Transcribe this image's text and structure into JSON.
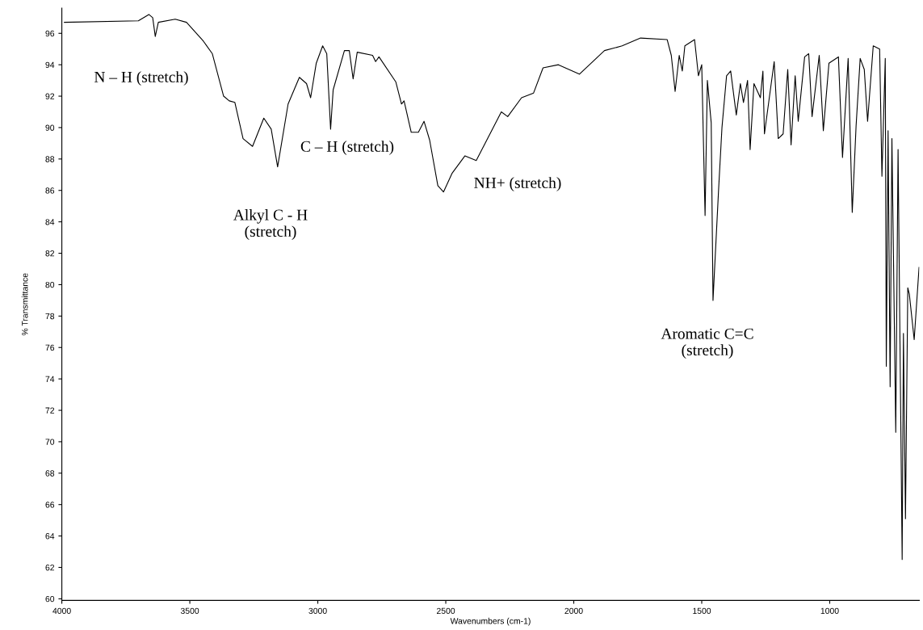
{
  "chart_data": {
    "type": "line",
    "xlabel": "Wavenumbers (cm-1)",
    "ylabel": "% Transmittance",
    "xlim": [
      4000,
      650
    ],
    "xticks": [
      4000,
      3500,
      3000,
      2500,
      2000,
      1500,
      1000
    ],
    "ylim": [
      59.9,
      97.6
    ],
    "yticks": [
      60,
      62,
      64,
      66,
      68,
      70,
      72,
      74,
      76,
      78,
      80,
      82,
      84,
      86,
      88,
      90,
      92,
      94,
      96
    ],
    "grid": false,
    "marker": "none",
    "line_style": "solid",
    "series": [
      {
        "color": "#000000",
        "x": [
          3990,
          3701,
          3660,
          3645,
          3635,
          3623,
          3557,
          3513,
          3447,
          3412,
          3368,
          3346,
          3324,
          3292,
          3255,
          3211,
          3182,
          3157,
          3116,
          3072,
          3044,
          3028,
          3006,
          2981,
          2965,
          2950,
          2940,
          2896,
          2877,
          2862,
          2846,
          2786,
          2774,
          2761,
          2695,
          2673,
          2663,
          2635,
          2607,
          2585,
          2563,
          2531,
          2509,
          2475,
          2425,
          2381,
          2324,
          2283,
          2258,
          2204,
          2157,
          2120,
          2060,
          1978,
          1880,
          1811,
          1739,
          1635,
          1619,
          1604,
          1588,
          1576,
          1566,
          1528,
          1513,
          1500,
          1487,
          1478,
          1463,
          1456,
          1434,
          1421,
          1403,
          1387,
          1365,
          1349,
          1337,
          1321,
          1311,
          1296,
          1271,
          1261,
          1255,
          1217,
          1201,
          1182,
          1164,
          1151,
          1135,
          1123,
          1098,
          1082,
          1069,
          1041,
          1025,
          1003,
          966,
          950,
          928,
          912,
          897,
          881,
          865,
          852,
          830,
          805,
          796,
          783,
          779,
          772,
          764,
          757,
          742,
          733,
          717,
          712,
          704,
          695,
          689,
          670,
          651
        ],
        "values": [
          96.7,
          96.8,
          97.2,
          97.0,
          95.8,
          96.7,
          96.9,
          96.7,
          95.5,
          94.7,
          92.0,
          91.7,
          91.6,
          89.3,
          88.8,
          90.6,
          89.9,
          87.5,
          91.5,
          93.2,
          92.8,
          91.9,
          94.1,
          95.2,
          94.7,
          89.9,
          92.4,
          94.9,
          94.9,
          93.1,
          94.8,
          94.6,
          94.2,
          94.5,
          92.9,
          91.5,
          91.7,
          89.7,
          89.7,
          90.4,
          89.2,
          86.3,
          85.9,
          87.1,
          88.2,
          87.9,
          89.7,
          91.0,
          90.7,
          91.9,
          92.2,
          93.8,
          94.0,
          93.4,
          94.9,
          95.2,
          95.7,
          95.6,
          94.6,
          92.3,
          94.6,
          93.6,
          95.2,
          95.6,
          93.3,
          94.0,
          84.4,
          93.0,
          90.3,
          79.0,
          86.1,
          90.0,
          93.3,
          93.6,
          90.8,
          92.8,
          91.6,
          93.0,
          88.6,
          92.8,
          91.9,
          93.6,
          89.6,
          94.2,
          89.3,
          89.6,
          93.7,
          88.9,
          93.3,
          90.4,
          94.5,
          94.7,
          90.7,
          94.6,
          89.8,
          94.1,
          94.5,
          88.1,
          94.4,
          84.6,
          90.1,
          94.4,
          93.7,
          90.4,
          95.2,
          95.0,
          86.9,
          94.4,
          74.8,
          89.8,
          73.5,
          89.3,
          70.6,
          88.6,
          62.5,
          76.9,
          65.1,
          79.8,
          79.4,
          76.5,
          81.1
        ]
      }
    ],
    "annotations": [
      "N – H (stretch)",
      "Alkyl C - H\n(stretch)",
      "C – H (stretch)",
      "NH+ (stretch)",
      "Aromatic C=C\n(stretch)"
    ]
  }
}
